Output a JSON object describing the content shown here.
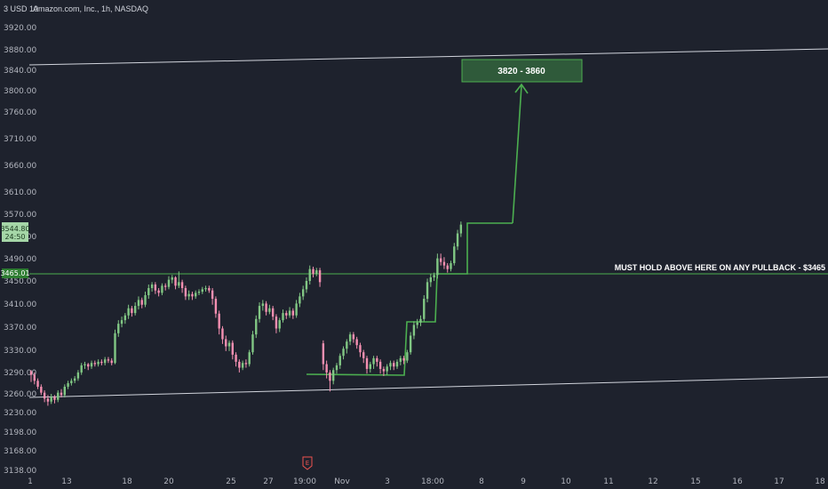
{
  "chart_data": {
    "type": "candlestick",
    "header": {
      "axis_unit": "3 USD 10",
      "symbol": "Amazon.com, Inc., 1h, NASDAQ"
    },
    "y_ticks": [
      "3920.00",
      "3880.00",
      "3840.00",
      "3800.00",
      "3760.00",
      "3710.00",
      "3660.00",
      "3610.00",
      "3570.00",
      "3520.00",
      "3490.00",
      "3450.00",
      "3410.00",
      "3370.00",
      "3330.00",
      "3290.00",
      "3260.00",
      "3230.00",
      "3198.00",
      "3168.00",
      "3138.00"
    ],
    "x_ticks": [
      "1",
      "13",
      "18",
      "20",
      "25",
      "27",
      "19:00",
      "Nov",
      "3",
      "18:00",
      "8",
      "9",
      "10",
      "11",
      "12",
      "15",
      "16",
      "17",
      "18"
    ],
    "price_tag": {
      "value": "3544.80",
      "countdown": "24:50",
      "color": "#4caf50"
    },
    "level_tag": {
      "value": "3465.01",
      "color": "#2e7d32"
    },
    "annotations": {
      "target_zone": "3820 - 3860",
      "hold_level_note": "MUST HOLD ABOVE HERE ON ANY PULLBACK - $3465",
      "hold_level": 3465.01,
      "target_low": 3820,
      "target_high": 3860
    },
    "earnings_marker": "E",
    "colors": {
      "up": "#81c784",
      "down": "#f48fb1",
      "drawing": "#4caf50",
      "channel": "#d1d4dc",
      "background": "#1e222d"
    },
    "candles": [
      [
        3298,
        3292,
        3300,
        3280
      ],
      [
        3292,
        3282,
        3296,
        3276
      ],
      [
        3282,
        3272,
        3286,
        3268
      ],
      [
        3272,
        3262,
        3276,
        3258
      ],
      [
        3262,
        3252,
        3266,
        3246
      ],
      [
        3252,
        3247,
        3258,
        3240
      ],
      [
        3247,
        3255,
        3260,
        3243
      ],
      [
        3255,
        3250,
        3258,
        3244
      ],
      [
        3250,
        3262,
        3266,
        3246
      ],
      [
        3262,
        3258,
        3268,
        3254
      ],
      [
        3258,
        3272,
        3276,
        3254
      ],
      [
        3272,
        3278,
        3282,
        3268
      ],
      [
        3278,
        3282,
        3286,
        3274
      ],
      [
        3282,
        3286,
        3290,
        3278
      ],
      [
        3286,
        3296,
        3300,
        3282
      ],
      [
        3296,
        3308,
        3312,
        3292
      ],
      [
        3308,
        3310,
        3314,
        3302
      ],
      [
        3310,
        3306,
        3312,
        3300
      ],
      [
        3306,
        3312,
        3316,
        3302
      ],
      [
        3312,
        3310,
        3316,
        3306
      ],
      [
        3310,
        3314,
        3318,
        3306
      ],
      [
        3314,
        3312,
        3318,
        3308
      ],
      [
        3312,
        3318,
        3322,
        3308
      ],
      [
        3318,
        3316,
        3322,
        3312
      ],
      [
        3316,
        3312,
        3320,
        3308
      ],
      [
        3312,
        3362,
        3368,
        3310
      ],
      [
        3362,
        3378,
        3384,
        3356
      ],
      [
        3378,
        3384,
        3390,
        3372
      ],
      [
        3384,
        3392,
        3396,
        3378
      ],
      [
        3392,
        3404,
        3410,
        3386
      ],
      [
        3404,
        3396,
        3408,
        3390
      ],
      [
        3396,
        3408,
        3414,
        3392
      ],
      [
        3408,
        3418,
        3424,
        3402
      ],
      [
        3418,
        3410,
        3422,
        3404
      ],
      [
        3410,
        3426,
        3432,
        3406
      ],
      [
        3426,
        3438,
        3444,
        3420
      ],
      [
        3438,
        3444,
        3448,
        3432
      ],
      [
        3444,
        3434,
        3448,
        3428
      ],
      [
        3434,
        3430,
        3438,
        3424
      ],
      [
        3430,
        3442,
        3446,
        3426
      ],
      [
        3442,
        3440,
        3446,
        3434
      ],
      [
        3440,
        3452,
        3458,
        3436
      ],
      [
        3452,
        3456,
        3460,
        3446
      ],
      [
        3456,
        3442,
        3458,
        3436
      ],
      [
        3442,
        3448,
        3466,
        3438
      ],
      [
        3448,
        3438,
        3452,
        3430
      ],
      [
        3438,
        3424,
        3442,
        3418
      ],
      [
        3424,
        3428,
        3434,
        3418
      ],
      [
        3428,
        3424,
        3432,
        3418
      ],
      [
        3424,
        3430,
        3434,
        3420
      ],
      [
        3430,
        3432,
        3436,
        3426
      ],
      [
        3432,
        3436,
        3440,
        3428
      ],
      [
        3436,
        3438,
        3442,
        3432
      ],
      [
        3438,
        3434,
        3442,
        3430
      ],
      [
        3434,
        3420,
        3438,
        3410
      ],
      [
        3420,
        3395,
        3424,
        3388
      ],
      [
        3395,
        3370,
        3400,
        3360
      ],
      [
        3370,
        3352,
        3374,
        3344
      ],
      [
        3352,
        3340,
        3358,
        3332
      ],
      [
        3340,
        3346,
        3350,
        3332
      ],
      [
        3346,
        3326,
        3350,
        3318
      ],
      [
        3326,
        3314,
        3330,
        3306
      ],
      [
        3314,
        3304,
        3318,
        3296
      ],
      [
        3304,
        3312,
        3316,
        3300
      ],
      [
        3312,
        3310,
        3318,
        3304
      ],
      [
        3310,
        3330,
        3334,
        3306
      ],
      [
        3330,
        3360,
        3366,
        3326
      ],
      [
        3360,
        3386,
        3392,
        3354
      ],
      [
        3386,
        3408,
        3414,
        3380
      ],
      [
        3408,
        3412,
        3418,
        3400
      ],
      [
        3412,
        3398,
        3416,
        3392
      ],
      [
        3398,
        3404,
        3410,
        3394
      ],
      [
        3404,
        3390,
        3408,
        3384
      ],
      [
        3390,
        3370,
        3394,
        3362
      ],
      [
        3370,
        3384,
        3388,
        3364
      ],
      [
        3384,
        3396,
        3402,
        3380
      ],
      [
        3396,
        3392,
        3400,
        3386
      ],
      [
        3392,
        3400,
        3406,
        3388
      ],
      [
        3400,
        3392,
        3404,
        3386
      ],
      [
        3392,
        3412,
        3418,
        3388
      ],
      [
        3412,
        3424,
        3430,
        3406
      ],
      [
        3424,
        3436,
        3442,
        3418
      ],
      [
        3436,
        3450,
        3456,
        3430
      ],
      [
        3450,
        3470,
        3476,
        3444
      ],
      [
        3470,
        3462,
        3474,
        3456
      ],
      [
        3462,
        3468,
        3472,
        3458
      ],
      [
        3468,
        3448,
        3472,
        3440
      ],
      [
        3345,
        3310,
        3350,
        3300
      ],
      [
        3310,
        3296,
        3316,
        3286
      ],
      [
        3296,
        3282,
        3300,
        3264
      ],
      [
        3282,
        3300,
        3304,
        3276
      ],
      [
        3300,
        3308,
        3312,
        3294
      ],
      [
        3308,
        3324,
        3328,
        3302
      ],
      [
        3324,
        3336,
        3340,
        3318
      ],
      [
        3336,
        3348,
        3352,
        3328
      ],
      [
        3348,
        3360,
        3364,
        3342
      ],
      [
        3360,
        3352,
        3364,
        3346
      ],
      [
        3352,
        3342,
        3356,
        3336
      ],
      [
        3342,
        3330,
        3346,
        3322
      ],
      [
        3330,
        3320,
        3334,
        3312
      ],
      [
        3320,
        3302,
        3324,
        3294
      ],
      [
        3302,
        3310,
        3314,
        3296
      ],
      [
        3310,
        3320,
        3324,
        3302
      ],
      [
        3320,
        3314,
        3324,
        3306
      ],
      [
        3314,
        3302,
        3318,
        3294
      ],
      [
        3302,
        3298,
        3306,
        3290
      ],
      [
        3298,
        3306,
        3310,
        3292
      ],
      [
        3306,
        3312,
        3316,
        3300
      ],
      [
        3312,
        3306,
        3316,
        3300
      ],
      [
        3306,
        3314,
        3318,
        3302
      ],
      [
        3314,
        3320,
        3324,
        3308
      ],
      [
        3320,
        3316,
        3324,
        3310
      ],
      [
        3316,
        3330,
        3334,
        3312
      ],
      [
        3330,
        3358,
        3364,
        3326
      ],
      [
        3358,
        3376,
        3382,
        3352
      ],
      [
        3376,
        3380,
        3386,
        3370
      ],
      [
        3380,
        3386,
        3392,
        3374
      ],
      [
        3386,
        3420,
        3426,
        3382
      ],
      [
        3420,
        3448,
        3454,
        3414
      ],
      [
        3448,
        3456,
        3462,
        3440
      ],
      [
        3456,
        3460,
        3464,
        3450
      ],
      [
        3460,
        3488,
        3496,
        3454
      ],
      [
        3488,
        3482,
        3496,
        3476
      ],
      [
        3482,
        3476,
        3490,
        3470
      ],
      [
        3476,
        3470,
        3480,
        3464
      ],
      [
        3470,
        3480,
        3484,
        3466
      ],
      [
        3480,
        3508,
        3514,
        3476
      ],
      [
        3508,
        3530,
        3536,
        3502
      ],
      [
        3530,
        3544.8,
        3550,
        3524
      ]
    ]
  }
}
